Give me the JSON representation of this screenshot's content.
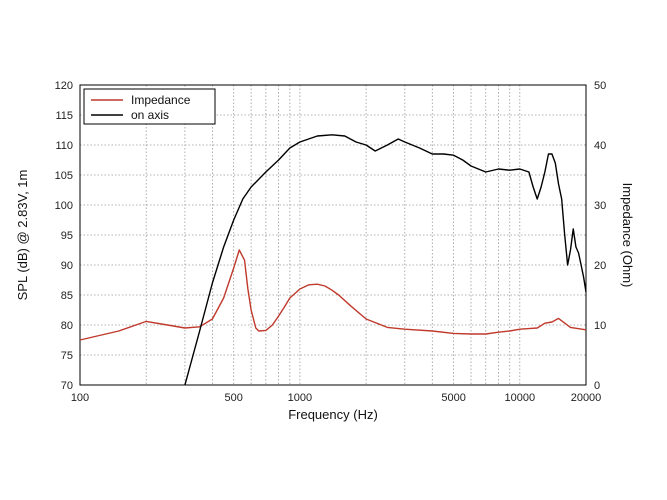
{
  "chart_data": {
    "type": "line",
    "xlabel": "Frequency (Hz)",
    "ylabel": "SPL (dB) @ 2.83V, 1m",
    "y2label": "Impedance (Ohm)",
    "xscale": "log",
    "xlim": [
      100,
      20000
    ],
    "ylim": [
      70,
      120
    ],
    "y2lim": [
      0,
      50
    ],
    "grid": true,
    "legend": "top-left",
    "x_ticks": [
      100,
      500,
      1000,
      5000,
      10000,
      20000
    ],
    "x_tick_labels": [
      "100",
      "500",
      "1000",
      "5000",
      "10000",
      "20000"
    ],
    "y_ticks": [
      70,
      75,
      80,
      85,
      90,
      95,
      100,
      105,
      110,
      115,
      120
    ],
    "y2_ticks": [
      0,
      10,
      20,
      30,
      40,
      50
    ],
    "series": [
      {
        "name": "Impedance",
        "axis": "right",
        "color": "#c0392b",
        "x": [
          100,
          150,
          200,
          250,
          300,
          350,
          400,
          450,
          500,
          530,
          560,
          580,
          600,
          630,
          650,
          700,
          750,
          800,
          850,
          900,
          1000,
          1100,
          1200,
          1300,
          1400,
          1500,
          1700,
          2000,
          2500,
          3000,
          4000,
          5000,
          6000,
          7000,
          8000,
          9000,
          10000,
          11000,
          12000,
          13000,
          14000,
          15000,
          17000,
          20000
        ],
        "values": [
          7.5,
          9.0,
          10.6,
          10.0,
          9.5,
          9.7,
          11.0,
          14.5,
          19.5,
          22.5,
          20.8,
          16.0,
          12.5,
          9.5,
          9.0,
          9.1,
          10.0,
          11.5,
          13.0,
          14.5,
          16.0,
          16.7,
          16.8,
          16.5,
          15.8,
          15.0,
          13.2,
          11.0,
          9.6,
          9.3,
          9.0,
          8.6,
          8.5,
          8.5,
          8.8,
          9.0,
          9.3,
          9.4,
          9.5,
          10.3,
          10.5,
          11.1,
          9.6,
          9.2
        ]
      },
      {
        "name": "on axis",
        "axis": "left",
        "color": "#000000",
        "x": [
          300,
          350,
          400,
          450,
          500,
          550,
          600,
          700,
          800,
          900,
          1000,
          1200,
          1400,
          1600,
          1800,
          2000,
          2200,
          2500,
          2800,
          3000,
          3500,
          4000,
          4500,
          5000,
          5500,
          6000,
          7000,
          8000,
          9000,
          10000,
          11000,
          11500,
          12000,
          12500,
          13000,
          13500,
          14000,
          14500,
          15000,
          15500,
          16000,
          16500,
          17000,
          17500,
          18000,
          18500,
          19000,
          19500,
          20000
        ],
        "values": [
          70,
          79,
          87,
          93,
          97.5,
          101,
          103,
          105.5,
          107.5,
          109.5,
          110.5,
          111.5,
          111.7,
          111.5,
          110.5,
          110.0,
          109.0,
          110.0,
          111.0,
          110.5,
          109.5,
          108.5,
          108.5,
          108.3,
          107.5,
          106.5,
          105.5,
          106.0,
          105.8,
          106.0,
          105.5,
          103.0,
          101.0,
          103.0,
          105.5,
          108.5,
          108.5,
          107.0,
          103.5,
          101.0,
          95.0,
          90.0,
          92.5,
          96.0,
          93.0,
          92.0,
          90.0,
          88.0,
          85.5
        ]
      }
    ]
  }
}
